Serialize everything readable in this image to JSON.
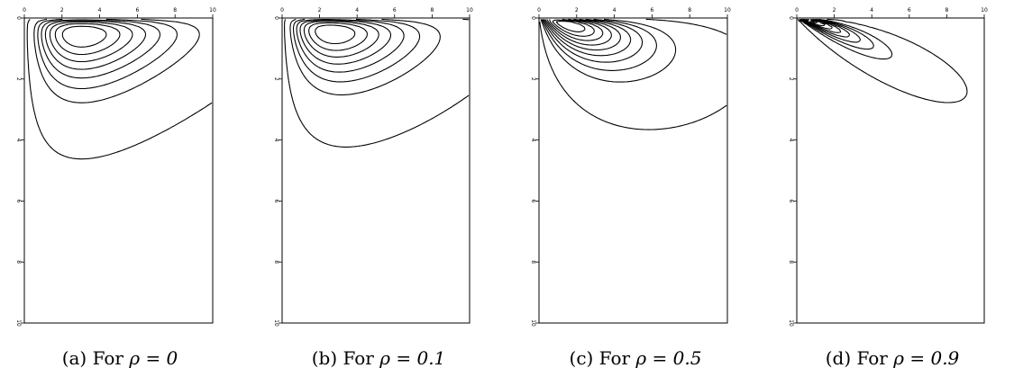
{
  "chart_data": [
    {
      "type": "contour",
      "caption_label": "(a) For ",
      "caption_param": "ρ = 0",
      "rho": 0,
      "xlim": [
        0,
        10
      ],
      "ylim": [
        0,
        10
      ],
      "x_ticks": [
        "0",
        "2",
        "4",
        "6",
        "8",
        "10"
      ],
      "y_ticks": [
        "0",
        "2",
        "4",
        "6",
        "8",
        "10"
      ],
      "mode": [
        4.0,
        1.1
      ],
      "levels": 8
    },
    {
      "type": "contour",
      "caption_label": "(b) For ",
      "caption_param": "ρ = 0.1",
      "rho": 0.1,
      "xlim": [
        0,
        10
      ],
      "ylim": [
        0,
        10
      ],
      "x_ticks": [
        "0",
        "2",
        "4",
        "6",
        "8",
        "10"
      ],
      "y_ticks": [
        "0",
        "2",
        "4",
        "6",
        "8",
        "10"
      ],
      "mode": [
        3.8,
        1.0
      ],
      "levels": 8
    },
    {
      "type": "contour",
      "caption_label": "(c) For ",
      "caption_param": "ρ = 0.5",
      "rho": 0.5,
      "xlim": [
        0,
        10
      ],
      "ylim": [
        0,
        10
      ],
      "x_ticks": [
        "0",
        "2",
        "4",
        "6",
        "8",
        "10"
      ],
      "y_ticks": [
        "0",
        "2",
        "4",
        "6",
        "8",
        "10"
      ],
      "mode": [
        3.3,
        0.9
      ],
      "levels": 10
    },
    {
      "type": "contour",
      "caption_label": "(d) For ",
      "caption_param": "ρ = 0.9",
      "rho": 0.9,
      "xlim": [
        0,
        10
      ],
      "ylim": [
        0,
        10
      ],
      "x_ticks": [
        "0",
        "2",
        "4",
        "6",
        "8",
        "10"
      ],
      "y_ticks": [
        "0",
        "2",
        "4",
        "6",
        "8",
        "10"
      ],
      "mode": [
        2.7,
        0.6
      ],
      "levels": 11
    }
  ]
}
